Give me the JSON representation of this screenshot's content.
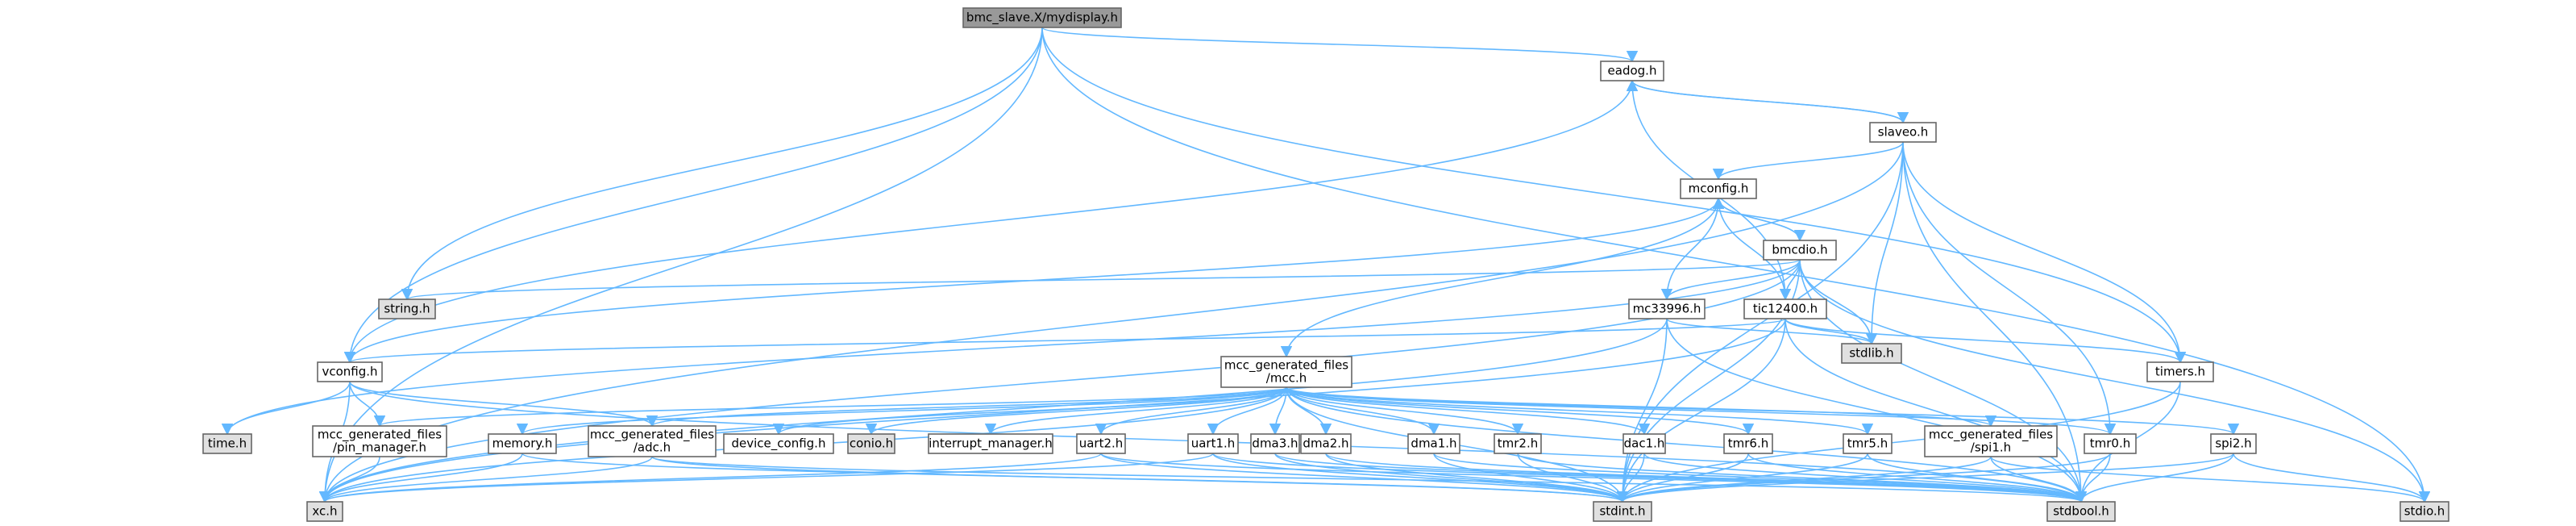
{
  "graph": {
    "root": "bmc_slave.X/mydisplay.h",
    "nodes": [
      {
        "id": "root",
        "label": [
          "bmc_slave.X/mydisplay.h"
        ],
        "kind": "root"
      },
      {
        "id": "eadog",
        "label": [
          "eadog.h"
        ],
        "kind": "documented"
      },
      {
        "id": "slaveo",
        "label": [
          "slaveo.h"
        ],
        "kind": "documented"
      },
      {
        "id": "mconfig",
        "label": [
          "mconfig.h"
        ],
        "kind": "documented"
      },
      {
        "id": "bmcdio",
        "label": [
          "bmcdio.h"
        ],
        "kind": "documented"
      },
      {
        "id": "string",
        "label": [
          "string.h"
        ],
        "kind": "system"
      },
      {
        "id": "mc33996",
        "label": [
          "mc33996.h"
        ],
        "kind": "documented"
      },
      {
        "id": "tic12400",
        "label": [
          "tic12400.h"
        ],
        "kind": "documented"
      },
      {
        "id": "stdlib",
        "label": [
          "stdlib.h"
        ],
        "kind": "system"
      },
      {
        "id": "timers",
        "label": [
          "timers.h"
        ],
        "kind": "documented"
      },
      {
        "id": "vconfig",
        "label": [
          "vconfig.h"
        ],
        "kind": "documented"
      },
      {
        "id": "mcc",
        "label": [
          "mcc_generated_files",
          "/mcc.h"
        ],
        "kind": "documented"
      },
      {
        "id": "time",
        "label": [
          "time.h"
        ],
        "kind": "system"
      },
      {
        "id": "pin_manager",
        "label": [
          "mcc_generated_files",
          "/pin_manager.h"
        ],
        "kind": "documented"
      },
      {
        "id": "memory",
        "label": [
          "memory.h"
        ],
        "kind": "documented"
      },
      {
        "id": "adc",
        "label": [
          "mcc_generated_files",
          "/adc.h"
        ],
        "kind": "documented"
      },
      {
        "id": "device_config",
        "label": [
          "device_config.h"
        ],
        "kind": "documented"
      },
      {
        "id": "conio",
        "label": [
          "conio.h"
        ],
        "kind": "system"
      },
      {
        "id": "interrupt_manager",
        "label": [
          "interrupt_manager.h"
        ],
        "kind": "documented"
      },
      {
        "id": "uart2",
        "label": [
          "uart2.h"
        ],
        "kind": "documented"
      },
      {
        "id": "uart1",
        "label": [
          "uart1.h"
        ],
        "kind": "documented"
      },
      {
        "id": "dma3",
        "label": [
          "dma3.h"
        ],
        "kind": "documented"
      },
      {
        "id": "dma2",
        "label": [
          "dma2.h"
        ],
        "kind": "documented"
      },
      {
        "id": "dma1",
        "label": [
          "dma1.h"
        ],
        "kind": "documented"
      },
      {
        "id": "tmr2",
        "label": [
          "tmr2.h"
        ],
        "kind": "documented"
      },
      {
        "id": "dac1",
        "label": [
          "dac1.h"
        ],
        "kind": "documented"
      },
      {
        "id": "tmr6",
        "label": [
          "tmr6.h"
        ],
        "kind": "documented"
      },
      {
        "id": "tmr5",
        "label": [
          "tmr5.h"
        ],
        "kind": "documented"
      },
      {
        "id": "spi1",
        "label": [
          "mcc_generated_files",
          "/spi1.h"
        ],
        "kind": "documented"
      },
      {
        "id": "tmr0",
        "label": [
          "tmr0.h"
        ],
        "kind": "documented"
      },
      {
        "id": "spi2",
        "label": [
          "spi2.h"
        ],
        "kind": "documented"
      },
      {
        "id": "xc",
        "label": [
          "xc.h"
        ],
        "kind": "system"
      },
      {
        "id": "stdint",
        "label": [
          "stdint.h"
        ],
        "kind": "system"
      },
      {
        "id": "stdbool",
        "label": [
          "stdbool.h"
        ],
        "kind": "system"
      },
      {
        "id": "stdio",
        "label": [
          "stdio.h"
        ],
        "kind": "system"
      }
    ],
    "edges": [
      [
        "root",
        "xc"
      ],
      [
        "root",
        "eadog"
      ],
      [
        "root",
        "string"
      ],
      [
        "root",
        "vconfig"
      ],
      [
        "root",
        "timers"
      ],
      [
        "root",
        "stdio"
      ],
      [
        "eadog",
        "slaveo"
      ],
      [
        "eadog",
        "vconfig"
      ],
      [
        "slaveo",
        "eadog"
      ],
      [
        "slaveo",
        "mconfig"
      ],
      [
        "slaveo",
        "xc"
      ],
      [
        "slaveo",
        "stdlib"
      ],
      [
        "slaveo",
        "stdint"
      ],
      [
        "slaveo",
        "tmr0"
      ],
      [
        "slaveo",
        "timers"
      ],
      [
        "slaveo",
        "stdbool"
      ],
      [
        "mconfig",
        "bmcdio"
      ],
      [
        "mconfig",
        "mcc"
      ],
      [
        "mconfig",
        "vconfig"
      ],
      [
        "bmcdio",
        "mconfig"
      ],
      [
        "bmcdio",
        "string"
      ],
      [
        "bmcdio",
        "mc33996"
      ],
      [
        "bmcdio",
        "tic12400"
      ],
      [
        "bmcdio",
        "stdlib"
      ],
      [
        "bmcdio",
        "stdint"
      ],
      [
        "bmcdio",
        "stdbool"
      ],
      [
        "bmcdio",
        "stdio"
      ],
      [
        "bmcdio",
        "xc"
      ],
      [
        "bmcdio",
        "time"
      ],
      [
        "mc33996",
        "mconfig"
      ],
      [
        "mc33996",
        "xc"
      ],
      [
        "mc33996",
        "stdlib"
      ],
      [
        "mc33996",
        "stdint"
      ],
      [
        "mc33996",
        "stdbool"
      ],
      [
        "tic12400",
        "eadog"
      ],
      [
        "tic12400",
        "mconfig"
      ],
      [
        "tic12400",
        "xc"
      ],
      [
        "tic12400",
        "stdlib"
      ],
      [
        "tic12400",
        "stdint"
      ],
      [
        "tic12400",
        "stdbool"
      ],
      [
        "tic12400",
        "timers"
      ],
      [
        "tic12400",
        "vconfig"
      ],
      [
        "timers",
        "stdint"
      ],
      [
        "timers",
        "stdbool"
      ],
      [
        "vconfig",
        "time"
      ],
      [
        "vconfig",
        "pin_manager"
      ],
      [
        "vconfig",
        "adc"
      ],
      [
        "vconfig",
        "xc"
      ],
      [
        "vconfig",
        "stdbool"
      ],
      [
        "mcc",
        "xc"
      ],
      [
        "mcc",
        "pin_manager"
      ],
      [
        "mcc",
        "memory"
      ],
      [
        "mcc",
        "adc"
      ],
      [
        "mcc",
        "device_config"
      ],
      [
        "mcc",
        "conio"
      ],
      [
        "mcc",
        "interrupt_manager"
      ],
      [
        "mcc",
        "uart2"
      ],
      [
        "mcc",
        "uart1"
      ],
      [
        "mcc",
        "dma3"
      ],
      [
        "mcc",
        "dma2"
      ],
      [
        "mcc",
        "dma1"
      ],
      [
        "mcc",
        "tmr2"
      ],
      [
        "mcc",
        "dac1"
      ],
      [
        "mcc",
        "tmr6"
      ],
      [
        "mcc",
        "tmr5"
      ],
      [
        "mcc",
        "spi1"
      ],
      [
        "mcc",
        "tmr0"
      ],
      [
        "mcc",
        "spi2"
      ],
      [
        "mcc",
        "stdint"
      ],
      [
        "mcc",
        "stdbool"
      ],
      [
        "pin_manager",
        "xc"
      ],
      [
        "memory",
        "xc"
      ],
      [
        "memory",
        "stdint"
      ],
      [
        "adc",
        "xc"
      ],
      [
        "adc",
        "stdint"
      ],
      [
        "adc",
        "stdbool"
      ],
      [
        "uart2",
        "xc"
      ],
      [
        "uart2",
        "stdint"
      ],
      [
        "uart2",
        "stdbool"
      ],
      [
        "uart1",
        "xc"
      ],
      [
        "uart1",
        "stdint"
      ],
      [
        "uart1",
        "stdbool"
      ],
      [
        "dma3",
        "stdint"
      ],
      [
        "dma3",
        "stdbool"
      ],
      [
        "dma2",
        "stdint"
      ],
      [
        "dma2",
        "stdbool"
      ],
      [
        "dma1",
        "stdint"
      ],
      [
        "dma1",
        "stdbool"
      ],
      [
        "tmr2",
        "stdint"
      ],
      [
        "tmr2",
        "stdbool"
      ],
      [
        "dac1",
        "stdint"
      ],
      [
        "dac1",
        "stdbool"
      ],
      [
        "tmr6",
        "stdint"
      ],
      [
        "tmr6",
        "stdbool"
      ],
      [
        "tmr5",
        "stdint"
      ],
      [
        "tmr5",
        "stdbool"
      ],
      [
        "spi1",
        "stdint"
      ],
      [
        "spi1",
        "stdbool"
      ],
      [
        "spi1",
        "stdio"
      ],
      [
        "tmr0",
        "stdint"
      ],
      [
        "tmr0",
        "stdbool"
      ],
      [
        "spi2",
        "stdint"
      ],
      [
        "spi2",
        "stdbool"
      ],
      [
        "spi2",
        "stdio"
      ]
    ],
    "colors": {
      "root_fill": "#999999",
      "documented_fill": "#ffffff",
      "system_fill": "#e0e0e0",
      "border": "#666666",
      "edge": "#63b8ff"
    }
  }
}
